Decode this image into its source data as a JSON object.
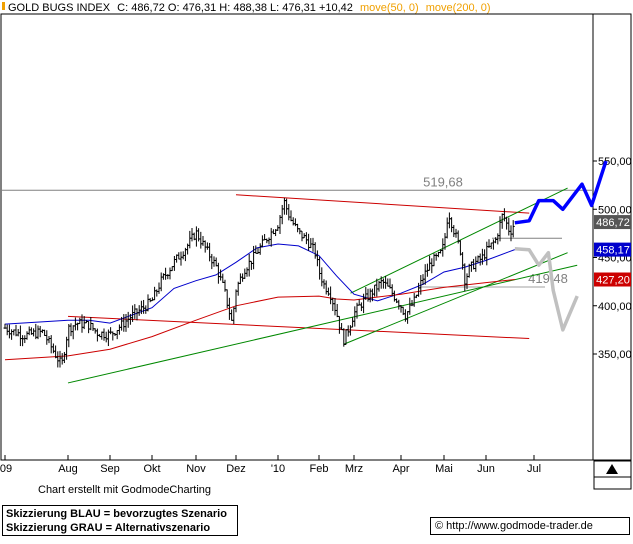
{
  "header": {
    "index_name": "GOLD BUGS INDEX",
    "quote": "C: 486,72  O: 476,31  H: 488,38  L: 476,31  +10,42",
    "ma50_label": "move(50, 0)",
    "ma200_label": "move(200, 0)"
  },
  "colors": {
    "price": "#000000",
    "ma50": "#0000cc",
    "ma200": "#cc0000",
    "channel_red": "#cc0000",
    "trend_green": "#008800",
    "scenario_blue": "#0000ff",
    "scenario_grey": "#c0c0c0",
    "badge_close": "#555555",
    "badge_ma50": "#0000cc",
    "badge_ma200": "#cc0000"
  },
  "chart_data": {
    "type": "line",
    "subtype": "ohlc-bars",
    "ylim": [
      320,
      550
    ],
    "y_ticks": [
      "350,00",
      "400,00",
      "450,00",
      "500,00",
      "550,00"
    ],
    "x_ticks": [
      "'09",
      "Aug",
      "Sep",
      "Okt",
      "Nov",
      "Dez",
      "'10",
      "Feb",
      "Mrz",
      "Apr",
      "Mai",
      "Jun",
      "Jul"
    ],
    "price_close_path": [
      [
        0,
        377
      ],
      [
        0.3,
        369
      ],
      [
        0.6,
        373
      ],
      [
        0.9,
        338
      ],
      [
        1.0,
        376
      ],
      [
        1.2,
        382
      ],
      [
        1.5,
        380
      ],
      [
        1.7,
        372
      ],
      [
        2.0,
        370
      ],
      [
        2.3,
        381
      ],
      [
        2.5,
        389
      ],
      [
        2.8,
        398
      ],
      [
        3.0,
        405
      ],
      [
        3.2,
        425
      ],
      [
        3.5,
        445
      ],
      [
        3.8,
        462
      ],
      [
        4.0,
        476
      ],
      [
        4.2,
        462
      ],
      [
        4.5,
        441
      ],
      [
        4.7,
        417
      ],
      [
        4.9,
        382
      ],
      [
        5.0,
        417
      ],
      [
        5.2,
        438
      ],
      [
        5.4,
        449
      ],
      [
        5.6,
        462
      ],
      [
        5.8,
        474
      ],
      [
        6.0,
        485
      ],
      [
        6.15,
        508
      ],
      [
        6.3,
        490
      ],
      [
        6.5,
        476
      ],
      [
        6.7,
        468
      ],
      [
        6.9,
        456
      ],
      [
        7.0,
        436
      ],
      [
        7.15,
        421
      ],
      [
        7.3,
        415
      ],
      [
        7.5,
        393
      ],
      [
        7.6,
        378
      ],
      [
        7.7,
        364
      ],
      [
        7.85,
        377
      ],
      [
        8.0,
        392
      ],
      [
        8.2,
        405
      ],
      [
        8.4,
        415
      ],
      [
        8.6,
        425
      ],
      [
        8.8,
        414
      ],
      [
        9.0,
        400
      ],
      [
        9.1,
        390
      ],
      [
        9.3,
        404
      ],
      [
        9.5,
        428
      ],
      [
        9.7,
        445
      ],
      [
        9.9,
        452
      ],
      [
        10.0,
        463
      ],
      [
        10.1,
        498
      ],
      [
        10.25,
        476
      ],
      [
        10.4,
        456
      ],
      [
        10.5,
        426
      ],
      [
        10.6,
        438
      ],
      [
        10.75,
        445
      ],
      [
        10.9,
        449
      ],
      [
        11.0,
        456
      ],
      [
        11.2,
        468
      ],
      [
        11.35,
        495
      ],
      [
        11.5,
        476
      ],
      [
        11.6,
        486.72
      ]
    ],
    "series": [
      {
        "name": "move(50, 0)",
        "latest": 458.17,
        "badge": "458,17",
        "path": [
          [
            0,
            381
          ],
          [
            1.0,
            385
          ],
          [
            1.5,
            385
          ],
          [
            2.0,
            382
          ],
          [
            2.5,
            390
          ],
          [
            3.0,
            398
          ],
          [
            3.5,
            418
          ],
          [
            4.0,
            426
          ],
          [
            4.5,
            432
          ],
          [
            5.0,
            445
          ],
          [
            5.5,
            460
          ],
          [
            6.0,
            464
          ],
          [
            6.5,
            462
          ],
          [
            7.0,
            452
          ],
          [
            7.5,
            431
          ],
          [
            8.0,
            412
          ],
          [
            8.5,
            405
          ],
          [
            9.0,
            413
          ],
          [
            9.5,
            422
          ],
          [
            10.0,
            435
          ],
          [
            10.5,
            440
          ],
          [
            11.0,
            447
          ],
          [
            11.6,
            458.17
          ]
        ]
      },
      {
        "name": "move(200, 0)",
        "latest": 427.2,
        "badge": "427,20",
        "path": [
          [
            0,
            344
          ],
          [
            1.0,
            348
          ],
          [
            2.0,
            355
          ],
          [
            3.0,
            368
          ],
          [
            4.0,
            385
          ],
          [
            5.0,
            400
          ],
          [
            6.0,
            409
          ],
          [
            7.0,
            410
          ],
          [
            7.5,
            407
          ],
          [
            8.0,
            406
          ],
          [
            9.0,
            412
          ],
          [
            10.0,
            419
          ],
          [
            11.0,
            424
          ],
          [
            11.6,
            427.2
          ]
        ]
      }
    ],
    "levels": [
      {
        "label": "519,68",
        "value": 519.68
      },
      {
        "label": "419,48",
        "value": 419.48
      }
    ],
    "close_badge": "486,72",
    "lines": {
      "channel_red_upper": [
        [
          5.0,
          515
        ],
        [
          11.9,
          496
        ]
      ],
      "channel_red_lower": [
        [
          1.0,
          389
        ],
        [
          11.9,
          366
        ]
      ],
      "trend_green_lower": [
        [
          1.0,
          320
        ],
        [
          12.9,
          442
        ]
      ],
      "trend_green_middle": [
        [
          7.7,
          360
        ],
        [
          12.7,
          455
        ]
      ],
      "trend_green_upper": [
        [
          7.9,
          413
        ],
        [
          12.7,
          522
        ]
      ]
    },
    "scenario_blue": [
      [
        11.6,
        486
      ],
      [
        11.9,
        488
      ],
      [
        12.1,
        509
      ],
      [
        12.4,
        509
      ],
      [
        12.6,
        500
      ],
      [
        13.0,
        526
      ],
      [
        13.2,
        504
      ],
      [
        13.5,
        550
      ]
    ],
    "scenario_grey": [
      [
        11.6,
        459
      ],
      [
        11.9,
        458
      ],
      [
        12.1,
        442
      ],
      [
        12.3,
        455
      ],
      [
        12.4,
        416
      ],
      [
        12.6,
        375
      ],
      [
        12.9,
        410
      ]
    ],
    "title": "",
    "xlabel": "",
    "ylabel": ""
  },
  "footer": {
    "credit": "Chart erstellt mit GodmodeCharting",
    "legend_blue": "Skizzierung BLAU = bevorzugtes Szenario",
    "legend_grey": "Skizzierung GRAU = Alternativszenario",
    "website": "© http://www.godmode-trader.de"
  }
}
